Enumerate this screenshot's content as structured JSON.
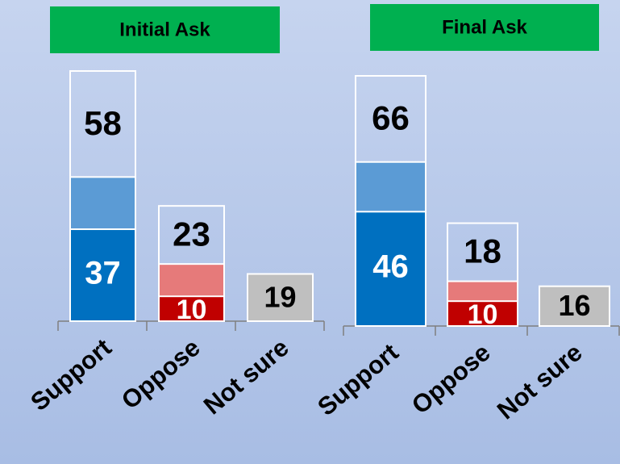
{
  "chart_data": [
    {
      "type": "bar",
      "title": "Initial Ask",
      "title_color": "#00b050",
      "categories": [
        "Support",
        "Oppose",
        "Not sure"
      ],
      "series": [
        {
          "values": [
            58,
            23,
            19
          ],
          "colors": [
            "#5b9bd5",
            "#e67a7a",
            "#bfbfbf"
          ]
        },
        {
          "values": [
            37,
            10,
            null
          ],
          "colors": [
            "#0070c0",
            "#c00000",
            null
          ]
        }
      ],
      "ylim": [
        0,
        100
      ]
    },
    {
      "type": "bar",
      "title": "Final Ask",
      "title_color": "#00b050",
      "categories": [
        "Support",
        "Oppose",
        "Not sure"
      ],
      "series": [
        {
          "values": [
            66,
            18,
            16
          ],
          "colors": [
            "#5b9bd5",
            "#e67a7a",
            "#bfbfbf"
          ]
        },
        {
          "values": [
            46,
            10,
            null
          ],
          "colors": [
            "#0070c0",
            "#c00000",
            null
          ]
        }
      ],
      "ylim": [
        0,
        100
      ]
    }
  ]
}
